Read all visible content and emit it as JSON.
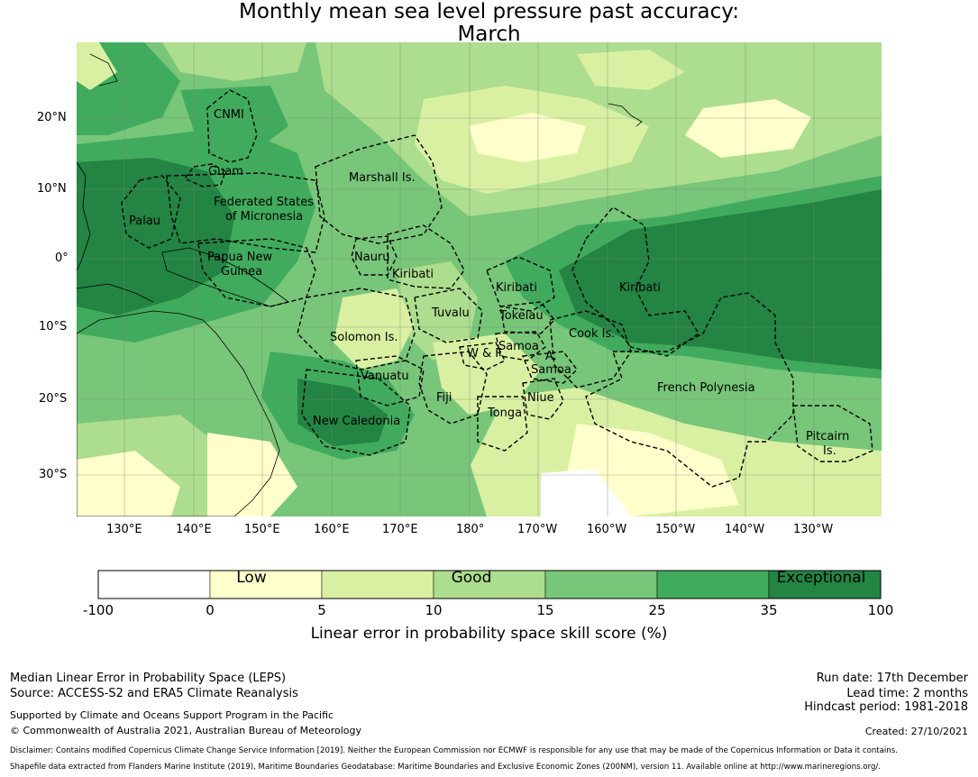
{
  "title": {
    "line1": "Monthly mean sea level pressure past accuracy:",
    "line2": "March"
  },
  "map": {
    "longitude_labels": [
      "130°E",
      "140°E",
      "150°E",
      "160°E",
      "170°E",
      "180°",
      "170°W",
      "160°W",
      "150°W",
      "140°W",
      "130°W"
    ],
    "latitude_labels": [
      "20°N",
      "10°N",
      "0°",
      "10°S",
      "20°S",
      "30°S"
    ],
    "regions": [
      {
        "id": "cnmi",
        "text": "CNMI"
      },
      {
        "id": "guam",
        "text": "Guam"
      },
      {
        "id": "marshall",
        "text": "Marshall Is."
      },
      {
        "id": "fsm1",
        "text": "Federated States"
      },
      {
        "id": "fsm2",
        "text": "of Micronesia"
      },
      {
        "id": "palau",
        "text": "Palau"
      },
      {
        "id": "nauru",
        "text": "Nauru"
      },
      {
        "id": "png1",
        "text": "Papua New"
      },
      {
        "id": "png2",
        "text": "Guinea"
      },
      {
        "id": "kiribati_w",
        "text": "Kiribati"
      },
      {
        "id": "kiribati_c",
        "text": "Kiribati"
      },
      {
        "id": "kiribati_e",
        "text": "Kiribati"
      },
      {
        "id": "tuvalu",
        "text": "Tuvalu"
      },
      {
        "id": "tokelau",
        "text": "Tokelau"
      },
      {
        "id": "solomon",
        "text": "Solomon Is."
      },
      {
        "id": "samoa",
        "text": "Samoa"
      },
      {
        "id": "wf",
        "text": "W & F"
      },
      {
        "id": "asamoa1",
        "text": "A."
      },
      {
        "id": "asamoa2",
        "text": "Samoa"
      },
      {
        "id": "cook",
        "text": "Cook Is."
      },
      {
        "id": "vanuatu",
        "text": "Vanuatu"
      },
      {
        "id": "fiji",
        "text": "Fiji"
      },
      {
        "id": "niue",
        "text": "Niue"
      },
      {
        "id": "frpoly",
        "text": "French Polynesia"
      },
      {
        "id": "tonga",
        "text": "Tonga"
      },
      {
        "id": "newcal",
        "text": "New Caledonia"
      },
      {
        "id": "pitcairn1",
        "text": "Pitcairn"
      },
      {
        "id": "pitcairn2",
        "text": "Is."
      }
    ]
  },
  "colorbar": {
    "ticks": [
      "-100",
      "0",
      "5",
      "10",
      "15",
      "25",
      "35",
      "100"
    ],
    "colors": [
      "#ffffff",
      "#ffffcc",
      "#d9f0a3",
      "#addd8e",
      "#78c679",
      "#41ab5d",
      "#238443"
    ],
    "categories": [
      "Low",
      "Good",
      "Exceptional"
    ],
    "label": "Linear error in probability space skill score (%)"
  },
  "footer": {
    "left1": "Median Linear Error in Probability Space (LEPS)",
    "left2": "Source: ACCESS-S2 and ERA5 Climate Reanalysis",
    "left3": "Supported by Climate and Oceans Support Program in the Pacific",
    "left4": "© Commonwealth of Australia 2021, Australian Bureau of Meteorology",
    "right1": "Run date: 17th December",
    "right2": "Lead time: 2 months",
    "right3": "Hindcast period: 1981-2018",
    "right4": "Created: 27/10/2021",
    "disclaimer": "Disclaimer: Contains modified Copernicus Climate Change Service Information [2019]. Neither the European Commission nor ECMWF is responsible for any use that may be made of the Copernicus Information or Data it contains.",
    "shapefile": "Shapefile data extracted from Flanders Marine Institute (2019), Maritime Boundaries Geodatabase: Maritime Boundaries and Exclusive Economic Zones (200NM), version 11. Available online at http://www.marineregions.org/."
  }
}
